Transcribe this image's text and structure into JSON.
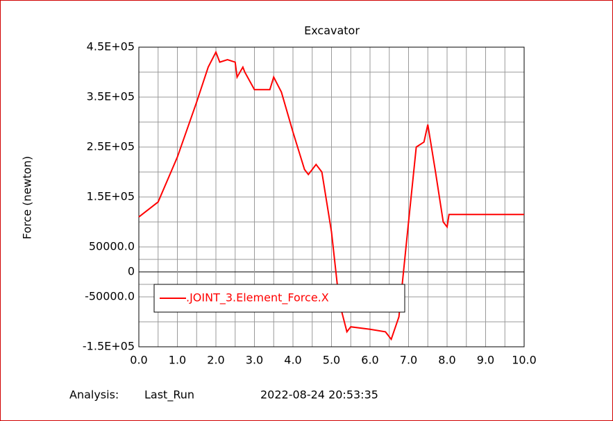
{
  "chart_data": {
    "type": "line",
    "title": "Excavator",
    "y_label": "Force (newton)",
    "x": [
      0,
      0.5,
      1.0,
      1.5,
      1.8,
      2.0,
      2.1,
      2.3,
      2.5,
      2.55,
      2.7,
      2.75,
      3.0,
      3.4,
      3.5,
      3.7,
      4.0,
      4.3,
      4.4,
      4.6,
      4.75,
      5.0,
      5.2,
      5.4,
      5.5,
      6.0,
      6.4,
      6.55,
      6.75,
      7.0,
      7.2,
      7.4,
      7.5,
      7.7,
      7.9,
      8.0,
      8.05,
      10.0
    ],
    "series": [
      {
        "name": ".JOINT_3.Element_Force.X",
        "color": "#ff0000",
        "values": [
          110000,
          140000,
          230000,
          340000,
          410000,
          440000,
          420000,
          425000,
          420000,
          390000,
          410000,
          400000,
          365000,
          365000,
          390000,
          360000,
          280000,
          205000,
          195000,
          215000,
          200000,
          80000,
          -60000,
          -120000,
          -110000,
          -115000,
          -120000,
          -135000,
          -90000,
          100000,
          250000,
          260000,
          295000,
          200000,
          100000,
          90000,
          115000,
          115000
        ]
      }
    ],
    "xlim": [
      0,
      10
    ],
    "xticks": [
      {
        "value": 0,
        "label": "0.0"
      },
      {
        "value": 1,
        "label": "1.0"
      },
      {
        "value": 2,
        "label": "2.0"
      },
      {
        "value": 3,
        "label": "3.0"
      },
      {
        "value": 4,
        "label": "4.0"
      },
      {
        "value": 5,
        "label": "5.0"
      },
      {
        "value": 6,
        "label": "6.0"
      },
      {
        "value": 7,
        "label": "7.0"
      },
      {
        "value": 8,
        "label": "8.0"
      },
      {
        "value": 9,
        "label": "9.0"
      },
      {
        "value": 10,
        "label": "10.0"
      }
    ],
    "ylim": [
      -150000,
      450000
    ],
    "yticks": [
      {
        "value": -150000,
        "label": "-1.5E+05"
      },
      {
        "value": -50000,
        "label": "-50000.0"
      },
      0,
      {
        "value": 50000,
        "label": "50000.0"
      },
      {
        "value": 150000,
        "label": "1.5E+05"
      },
      {
        "value": 250000,
        "label": "2.5E+05"
      },
      {
        "value": 350000,
        "label": "3.5E+05"
      },
      {
        "value": 450000,
        "label": "4.5E+05"
      }
    ],
    "grid": true,
    "footer": {
      "analysis_label": "Analysis:",
      "analysis": "Last_Run",
      "timestamp": "2022-08-24 20:53:35"
    }
  }
}
